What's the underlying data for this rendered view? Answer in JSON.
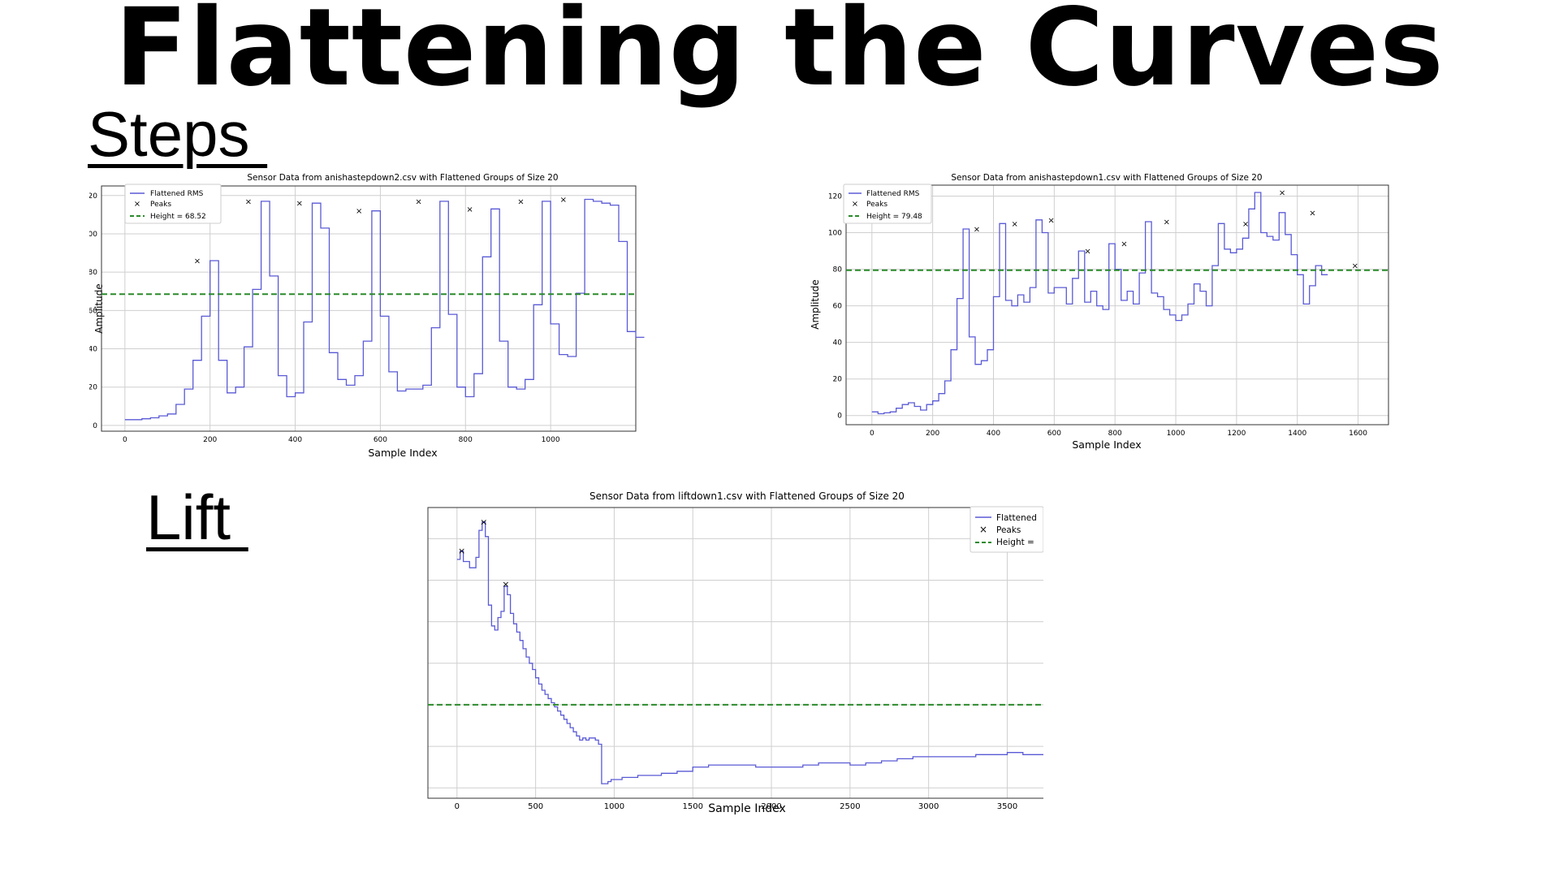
{
  "title": "Flattening the Curves",
  "sections": {
    "steps": "Steps ",
    "lift": "Lift "
  },
  "colors": {
    "line": "#5a5ad6",
    "peak": "#e0302a",
    "height": "#2a8a2a",
    "grid": "#cfcfcf"
  },
  "chart_data": [
    {
      "type": "line",
      "title": "Sensor Data from anishastepdown2.csv with Flattened Groups of Size 20",
      "xlabel": "Sample Index",
      "ylabel": "Amplitude",
      "xlim": [
        -55,
        1200
      ],
      "ylim": [
        -3,
        125
      ],
      "xticks": [
        0,
        200,
        400,
        600,
        800,
        1000
      ],
      "yticks": [
        0,
        20,
        40,
        60,
        80,
        100,
        120
      ],
      "grid": true,
      "legend_position": "upper-left",
      "legend": [
        "Flattened RMS",
        "Peaks",
        "Height = 68.52"
      ],
      "step": 20,
      "series": [
        {
          "name": "Flattened RMS",
          "values": [
            3,
            3,
            3.5,
            4,
            5,
            6,
            11,
            19,
            34,
            57,
            86,
            34,
            17,
            20,
            41,
            71,
            117,
            78,
            26,
            15,
            17,
            54,
            116,
            103,
            38,
            24,
            21,
            26,
            44,
            112,
            57,
            28,
            18,
            19,
            19,
            21,
            51,
            117,
            58,
            20,
            15,
            27,
            88,
            113,
            44,
            20,
            19,
            24,
            63,
            117,
            53,
            37,
            36,
            69,
            118,
            117,
            116,
            115,
            96,
            49,
            46
          ]
        }
      ],
      "peaks": [
        [
          170,
          86
        ],
        [
          290,
          117
        ],
        [
          410,
          116
        ],
        [
          550,
          112
        ],
        [
          690,
          117
        ],
        [
          810,
          113
        ],
        [
          930,
          117
        ],
        [
          1030,
          118
        ]
      ],
      "height": 68.52
    },
    {
      "type": "line",
      "title": "Sensor Data from anishastepdown1.csv with Flattened Groups of Size 20",
      "xlabel": "Sample Index",
      "ylabel": "Amplitude",
      "xlim": [
        -85,
        1700
      ],
      "ylim": [
        -5,
        126
      ],
      "xticks": [
        0,
        200,
        400,
        600,
        800,
        1000,
        1200,
        1400,
        1600
      ],
      "yticks": [
        0,
        20,
        40,
        60,
        80,
        100,
        120
      ],
      "grid": true,
      "legend_position": "upper-left",
      "legend": [
        "Flattened RMS",
        "Peaks",
        "Height = 79.48"
      ],
      "step": 20,
      "series": [
        {
          "name": "Flattened RMS",
          "values": [
            2,
            1,
            1.5,
            2,
            4,
            6,
            7,
            5,
            3,
            6,
            8,
            12,
            19,
            36,
            64,
            102,
            43,
            28,
            30,
            36,
            65,
            105,
            63,
            60,
            66,
            62,
            70,
            107,
            100,
            67,
            70,
            70,
            61,
            75,
            90,
            62,
            68,
            60,
            58,
            94,
            80,
            63,
            68,
            61,
            78,
            106,
            67,
            65,
            58,
            55,
            52,
            55,
            61,
            72,
            68,
            60,
            82,
            105,
            91,
            89,
            91,
            97,
            113,
            122,
            100,
            98,
            96,
            111,
            99,
            88,
            77,
            61,
            71,
            82,
            77
          ]
        }
      ],
      "peaks": [
        [
          345,
          102
        ],
        [
          470,
          105
        ],
        [
          590,
          107
        ],
        [
          710,
          90
        ],
        [
          830,
          94
        ],
        [
          970,
          106
        ],
        [
          1230,
          105
        ],
        [
          1350,
          122
        ],
        [
          1450,
          111
        ],
        [
          1590,
          82
        ]
      ],
      "height": 79.48
    },
    {
      "type": "line",
      "title": "Sensor Data from liftdown1.csv with Flattened Groups of Size 20",
      "xlabel": "Sample Index",
      "xlim": [
        -185,
        3730
      ],
      "ylim": [
        -5,
        135
      ],
      "xticks": [
        0,
        500,
        1000,
        1500,
        2000,
        2500,
        3000,
        3500
      ],
      "grid": true,
      "legend_position": "upper-right",
      "legend": [
        "Flattened",
        "Peaks",
        "Height ="
      ],
      "series": [
        {
          "name": "Flattened",
          "points": [
            [
              0,
              110
            ],
            [
              20,
              114
            ],
            [
              40,
              109
            ],
            [
              60,
              109
            ],
            [
              80,
              106
            ],
            [
              100,
              106
            ],
            [
              120,
              111
            ],
            [
              140,
              124
            ],
            [
              160,
              128
            ],
            [
              180,
              121
            ],
            [
              200,
              88
            ],
            [
              220,
              78
            ],
            [
              240,
              76
            ],
            [
              260,
              82
            ],
            [
              280,
              85
            ],
            [
              300,
              97
            ],
            [
              320,
              93
            ],
            [
              340,
              84
            ],
            [
              360,
              79
            ],
            [
              380,
              75
            ],
            [
              400,
              71
            ],
            [
              420,
              67
            ],
            [
              440,
              63
            ],
            [
              460,
              60
            ],
            [
              480,
              57
            ],
            [
              500,
              53
            ],
            [
              520,
              50
            ],
            [
              540,
              47
            ],
            [
              560,
              45
            ],
            [
              580,
              43
            ],
            [
              600,
              41
            ],
            [
              620,
              39
            ],
            [
              640,
              37
            ],
            [
              660,
              35
            ],
            [
              680,
              33
            ],
            [
              700,
              31
            ],
            [
              720,
              29
            ],
            [
              740,
              27
            ],
            [
              760,
              25
            ],
            [
              780,
              23
            ],
            [
              800,
              24
            ],
            [
              820,
              23
            ],
            [
              840,
              24
            ],
            [
              860,
              24
            ],
            [
              880,
              23
            ],
            [
              900,
              21
            ],
            [
              920,
              2
            ],
            [
              940,
              2
            ],
            [
              960,
              3
            ],
            [
              980,
              4
            ],
            [
              1000,
              4
            ],
            [
              1050,
              5
            ],
            [
              1100,
              5
            ],
            [
              1150,
              6
            ],
            [
              1200,
              6
            ],
            [
              1300,
              7
            ],
            [
              1400,
              8
            ],
            [
              1500,
              10
            ],
            [
              1600,
              11
            ],
            [
              1700,
              11
            ],
            [
              1800,
              11
            ],
            [
              1900,
              10
            ],
            [
              2000,
              10
            ],
            [
              2100,
              10
            ],
            [
              2200,
              11
            ],
            [
              2300,
              12
            ],
            [
              2400,
              12
            ],
            [
              2500,
              11
            ],
            [
              2600,
              12
            ],
            [
              2700,
              13
            ],
            [
              2800,
              14
            ],
            [
              2900,
              15
            ],
            [
              3000,
              15
            ],
            [
              3100,
              15
            ],
            [
              3200,
              15
            ],
            [
              3300,
              16
            ],
            [
              3400,
              16
            ],
            [
              3500,
              17
            ],
            [
              3600,
              16
            ],
            [
              3730,
              16
            ]
          ]
        }
      ],
      "peaks": [
        [
          30,
          114
        ],
        [
          170,
          128
        ],
        [
          310,
          98
        ]
      ],
      "height": 40
    }
  ]
}
